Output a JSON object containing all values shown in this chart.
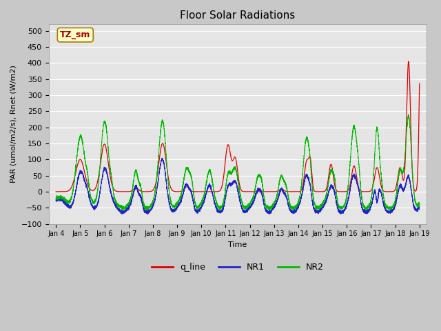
{
  "title": "Floor Solar Radiations",
  "xlabel": "Time",
  "ylabel": "PAR (umol/m2/s), Rnet (W/m2)",
  "ylim": [
    -100,
    520
  ],
  "yticks": [
    -100,
    -50,
    0,
    50,
    100,
    150,
    200,
    250,
    300,
    350,
    400,
    450,
    500
  ],
  "colors": {
    "q_line": "#dd0000",
    "NR1": "#2222cc",
    "NR2": "#00bb00"
  },
  "annotation_text": "TZ_sm",
  "annotation_box_color": "#ffffcc",
  "annotation_box_edge": "#aa7700",
  "title_fontsize": 11,
  "label_fontsize": 8,
  "tick_fontsize": 8,
  "legend_fontsize": 9
}
